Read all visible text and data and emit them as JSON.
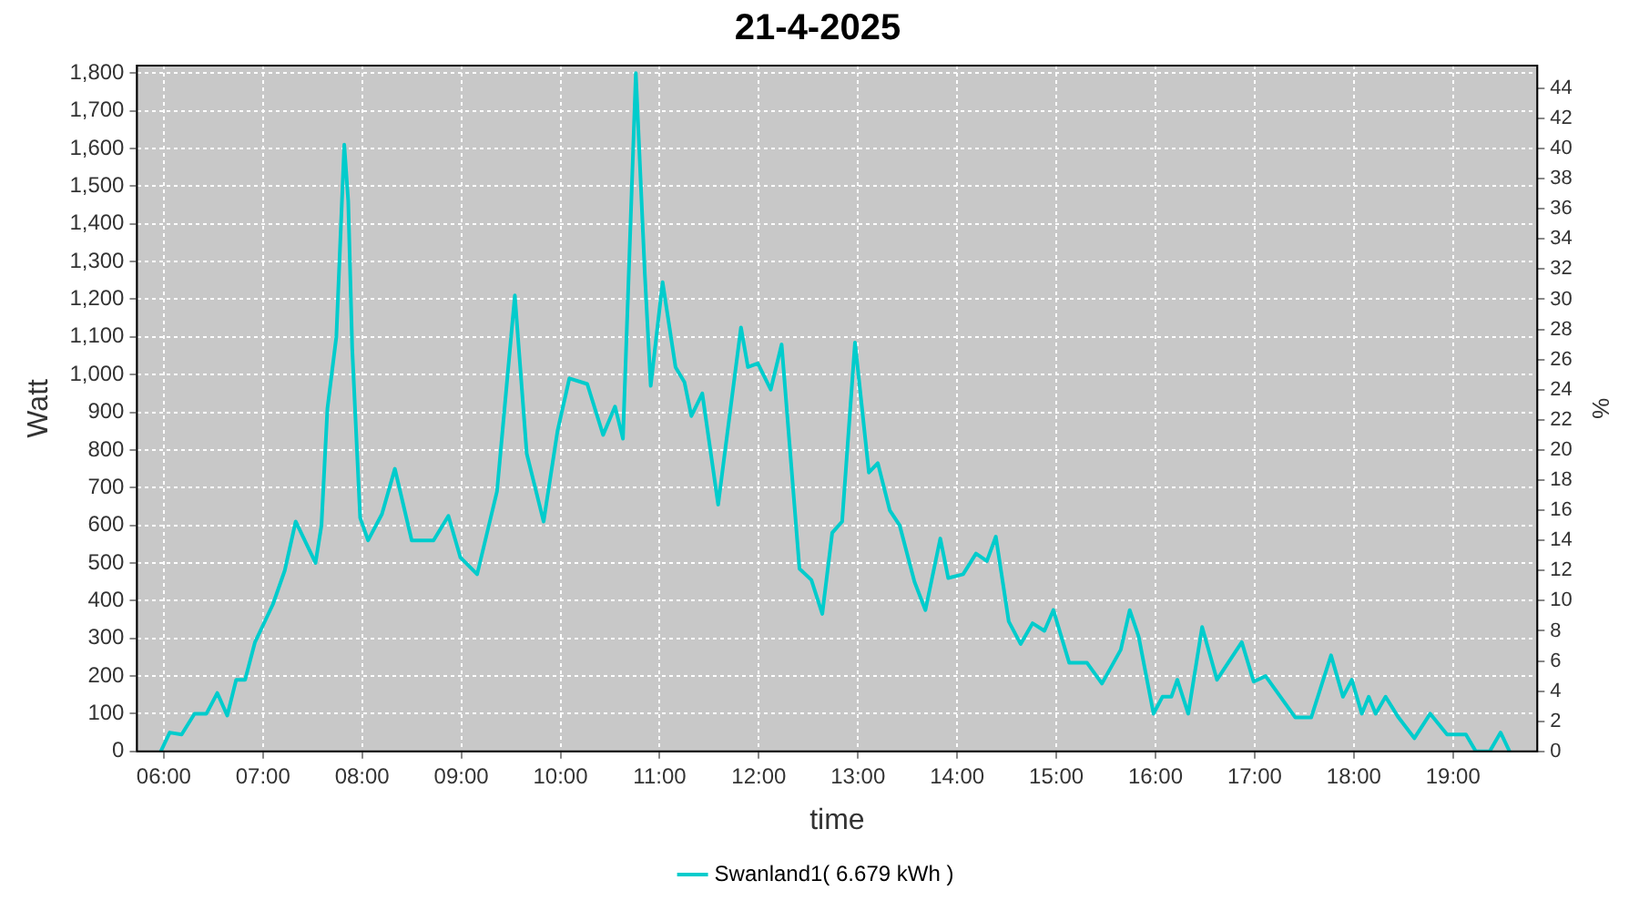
{
  "chart_data": {
    "type": "line",
    "title": "21-4-2025",
    "xlabel": "time",
    "ylabel": "Watt",
    "y2label": "%",
    "xlim": [
      5.73,
      19.85
    ],
    "xticks": [
      {
        "value": 6,
        "label": "06:00"
      },
      {
        "value": 7,
        "label": "07:00"
      },
      {
        "value": 8,
        "label": "08:00"
      },
      {
        "value": 9,
        "label": "09:00"
      },
      {
        "value": 10,
        "label": "10:00"
      },
      {
        "value": 11,
        "label": "11:00"
      },
      {
        "value": 12,
        "label": "12:00"
      },
      {
        "value": 13,
        "label": "13:00"
      },
      {
        "value": 14,
        "label": "14:00"
      },
      {
        "value": 15,
        "label": "15:00"
      },
      {
        "value": 16,
        "label": "16:00"
      },
      {
        "value": 17,
        "label": "17:00"
      },
      {
        "value": 18,
        "label": "18:00"
      },
      {
        "value": 19,
        "label": "19:00"
      }
    ],
    "ylim": [
      0,
      1820
    ],
    "yticks": [
      0,
      100,
      200,
      300,
      400,
      500,
      600,
      700,
      800,
      900,
      {
        "value": 1000,
        "label": "1,000"
      },
      {
        "value": 1100,
        "label": "1,100"
      },
      {
        "value": 1200,
        "label": "1,200"
      },
      {
        "value": 1300,
        "label": "1,300"
      },
      {
        "value": 1400,
        "label": "1,400"
      },
      {
        "value": 1500,
        "label": "1,500"
      },
      {
        "value": 1600,
        "label": "1,600"
      },
      {
        "value": 1700,
        "label": "1,700"
      },
      {
        "value": 1800,
        "label": "1,800"
      }
    ],
    "y2lim": [
      0,
      45.5
    ],
    "y2ticks": [
      0,
      2,
      4,
      6,
      8,
      10,
      12,
      14,
      16,
      18,
      20,
      22,
      24,
      26,
      28,
      30,
      32,
      34,
      36,
      38,
      40,
      42,
      44
    ],
    "grid": true,
    "legend": "bottom",
    "marker": "none",
    "line_style": "solid",
    "series": [
      {
        "name": "Swanland1( 6.679 kWh )",
        "color": "#00cccc",
        "x": [
          5.97,
          6.06,
          6.18,
          6.31,
          6.43,
          6.54,
          6.64,
          6.73,
          6.82,
          6.92,
          7.1,
          7.22,
          7.33,
          7.53,
          7.59,
          7.65,
          7.74,
          7.82,
          7.86,
          7.9,
          7.98,
          8.06,
          8.2,
          8.33,
          8.5,
          8.72,
          8.87,
          8.99,
          9.16,
          9.36,
          9.54,
          9.66,
          9.83,
          9.97,
          10.09,
          10.27,
          10.43,
          10.55,
          10.63,
          10.76,
          10.85,
          10.91,
          11.03,
          11.16,
          11.25,
          11.32,
          11.43,
          11.59,
          11.82,
          11.89,
          11.99,
          12.12,
          12.23,
          12.41,
          12.53,
          12.64,
          12.74,
          12.84,
          12.97,
          13.11,
          13.2,
          13.32,
          13.42,
          13.57,
          13.68,
          13.83,
          13.91,
          14.06,
          14.19,
          14.3,
          14.39,
          14.52,
          14.64,
          14.76,
          14.88,
          14.97,
          15.13,
          15.31,
          15.46,
          15.65,
          15.74,
          15.83,
          15.98,
          16.07,
          16.16,
          16.22,
          16.33,
          16.47,
          16.62,
          16.87,
          16.99,
          17.11,
          17.26,
          17.41,
          17.57,
          17.77,
          17.89,
          17.98,
          18.08,
          18.15,
          18.22,
          18.32,
          18.45,
          18.61,
          18.77,
          18.94,
          19.13,
          19.23,
          19.37,
          19.48,
          19.57
        ],
        "values": [
          0,
          50,
          45,
          100,
          100,
          155,
          95,
          190,
          190,
          290,
          390,
          480,
          610,
          500,
          600,
          910,
          1100,
          1610,
          1460,
          1070,
          620,
          560,
          630,
          750,
          560,
          560,
          625,
          515,
          470,
          690,
          1210,
          790,
          610,
          850,
          990,
          975,
          840,
          915,
          830,
          1800,
          1270,
          970,
          1245,
          1020,
          980,
          890,
          950,
          655,
          1125,
          1020,
          1030,
          960,
          1080,
          485,
          455,
          365,
          580,
          610,
          1085,
          740,
          765,
          640,
          600,
          450,
          375,
          565,
          460,
          470,
          525,
          505,
          570,
          345,
          285,
          340,
          320,
          375,
          235,
          235,
          180,
          270,
          375,
          305,
          100,
          145,
          145,
          190,
          100,
          330,
          190,
          290,
          185,
          200,
          145,
          90,
          90,
          255,
          145,
          190,
          100,
          145,
          100,
          145,
          90,
          35,
          100,
          45,
          45,
          0,
          0,
          50,
          0
        ]
      }
    ]
  }
}
